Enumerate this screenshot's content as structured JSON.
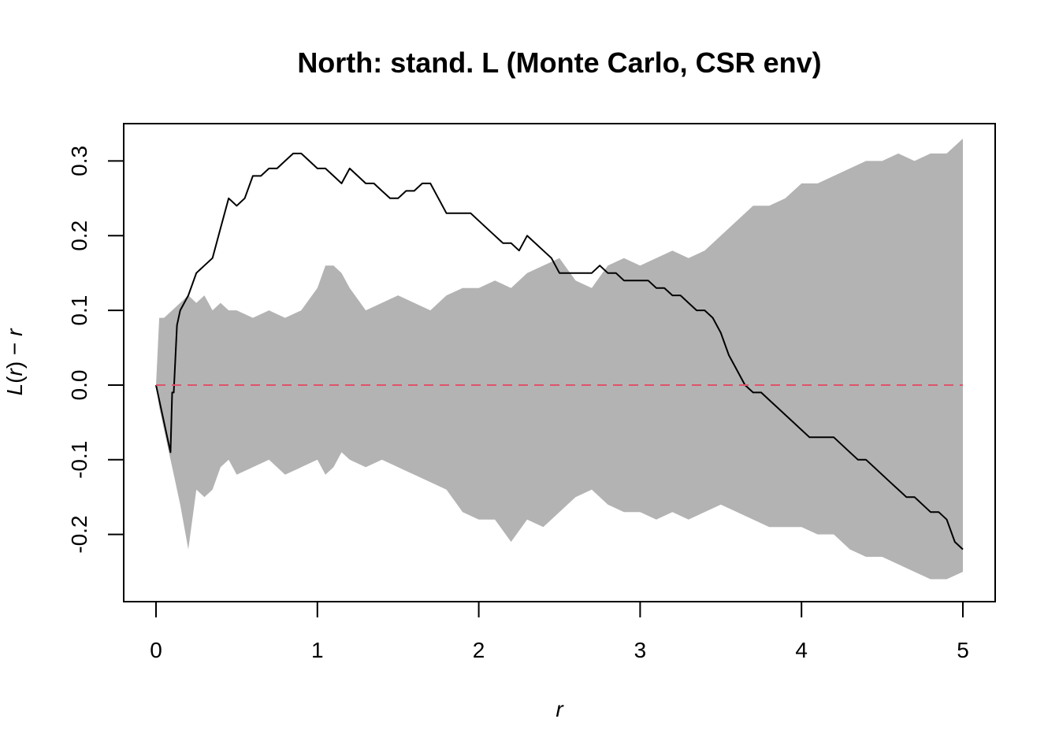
{
  "chart_data": {
    "type": "area",
    "title": "North: stand. L (Monte Carlo, CSR env)",
    "xlabel": "r",
    "ylabel": {
      "left": "L",
      "open": "(",
      "var": "r",
      "close": ")",
      "minus": " − ",
      "right": "r"
    },
    "xlim": [
      0,
      5
    ],
    "ylim": [
      -0.29,
      0.35
    ],
    "xticks": [
      "0",
      "1",
      "2",
      "3",
      "4",
      "5"
    ],
    "yticks": [
      "-0.2",
      "-0.1",
      "0.0",
      "0.1",
      "0.2",
      "0.3"
    ],
    "colors": {
      "envelope": "#b3b3b3",
      "observed": "#000000",
      "theoretical": "#df536b"
    },
    "reference_line": {
      "y": 0,
      "style": "dashed"
    },
    "series": [
      {
        "kind": "envelope",
        "x": [
          0,
          0.02,
          0.05,
          0.1,
          0.15,
          0.2,
          0.25,
          0.3,
          0.35,
          0.4,
          0.45,
          0.5,
          0.6,
          0.7,
          0.8,
          0.9,
          1.0,
          1.05,
          1.1,
          1.15,
          1.2,
          1.3,
          1.4,
          1.5,
          1.6,
          1.7,
          1.8,
          1.9,
          2.0,
          2.1,
          2.2,
          2.3,
          2.4,
          2.5,
          2.6,
          2.7,
          2.8,
          2.9,
          3.0,
          3.1,
          3.2,
          3.3,
          3.4,
          3.5,
          3.6,
          3.7,
          3.8,
          3.9,
          4.0,
          4.1,
          4.2,
          4.3,
          4.4,
          4.5,
          4.6,
          4.7,
          4.8,
          4.9,
          5.0
        ],
        "upper": [
          0,
          0.09,
          0.09,
          0.1,
          0.11,
          0.12,
          0.11,
          0.12,
          0.1,
          0.11,
          0.1,
          0.1,
          0.09,
          0.1,
          0.09,
          0.1,
          0.13,
          0.16,
          0.16,
          0.15,
          0.13,
          0.1,
          0.11,
          0.12,
          0.11,
          0.1,
          0.12,
          0.13,
          0.13,
          0.14,
          0.13,
          0.15,
          0.16,
          0.17,
          0.14,
          0.13,
          0.16,
          0.17,
          0.16,
          0.17,
          0.18,
          0.17,
          0.18,
          0.2,
          0.22,
          0.24,
          0.24,
          0.25,
          0.27,
          0.27,
          0.28,
          0.29,
          0.3,
          0.3,
          0.31,
          0.3,
          0.31,
          0.31,
          0.33
        ],
        "lower": [
          0,
          -0.03,
          -0.06,
          -0.11,
          -0.16,
          -0.22,
          -0.14,
          -0.15,
          -0.14,
          -0.11,
          -0.1,
          -0.12,
          -0.11,
          -0.1,
          -0.12,
          -0.11,
          -0.1,
          -0.12,
          -0.11,
          -0.09,
          -0.1,
          -0.11,
          -0.1,
          -0.11,
          -0.12,
          -0.13,
          -0.14,
          -0.17,
          -0.18,
          -0.18,
          -0.21,
          -0.18,
          -0.19,
          -0.17,
          -0.15,
          -0.14,
          -0.16,
          -0.17,
          -0.17,
          -0.18,
          -0.17,
          -0.18,
          -0.17,
          -0.16,
          -0.17,
          -0.18,
          -0.19,
          -0.19,
          -0.19,
          -0.2,
          -0.2,
          -0.22,
          -0.23,
          -0.23,
          -0.24,
          -0.25,
          -0.26,
          -0.26,
          -0.25
        ]
      },
      {
        "kind": "observed",
        "x": [
          0,
          0.09,
          0.1,
          0.11,
          0.13,
          0.15,
          0.2,
          0.25,
          0.3,
          0.35,
          0.4,
          0.45,
          0.5,
          0.55,
          0.6,
          0.65,
          0.7,
          0.75,
          0.8,
          0.85,
          0.9,
          0.95,
          1.0,
          1.05,
          1.1,
          1.15,
          1.2,
          1.25,
          1.3,
          1.35,
          1.4,
          1.45,
          1.5,
          1.55,
          1.6,
          1.65,
          1.7,
          1.75,
          1.8,
          1.85,
          1.9,
          1.95,
          2.0,
          2.05,
          2.1,
          2.15,
          2.2,
          2.25,
          2.3,
          2.35,
          2.4,
          2.45,
          2.5,
          2.55,
          2.6,
          2.65,
          2.7,
          2.75,
          2.8,
          2.85,
          2.9,
          2.95,
          3.0,
          3.05,
          3.1,
          3.15,
          3.2,
          3.25,
          3.3,
          3.35,
          3.4,
          3.45,
          3.5,
          3.55,
          3.6,
          3.65,
          3.7,
          3.75,
          3.8,
          3.85,
          3.9,
          3.95,
          4.0,
          4.05,
          4.1,
          4.15,
          4.2,
          4.25,
          4.3,
          4.35,
          4.4,
          4.45,
          4.5,
          4.55,
          4.6,
          4.65,
          4.7,
          4.75,
          4.8,
          4.85,
          4.9,
          4.95,
          5.0
        ],
        "y": [
          0,
          -0.09,
          -0.01,
          -0.01,
          0.08,
          0.1,
          0.12,
          0.15,
          0.16,
          0.17,
          0.21,
          0.25,
          0.24,
          0.25,
          0.28,
          0.28,
          0.29,
          0.29,
          0.3,
          0.31,
          0.31,
          0.3,
          0.29,
          0.29,
          0.28,
          0.27,
          0.29,
          0.28,
          0.27,
          0.27,
          0.26,
          0.25,
          0.25,
          0.26,
          0.26,
          0.27,
          0.27,
          0.25,
          0.23,
          0.23,
          0.23,
          0.23,
          0.22,
          0.21,
          0.2,
          0.19,
          0.19,
          0.18,
          0.2,
          0.19,
          0.18,
          0.17,
          0.15,
          0.15,
          0.15,
          0.15,
          0.15,
          0.16,
          0.15,
          0.15,
          0.14,
          0.14,
          0.14,
          0.14,
          0.13,
          0.13,
          0.12,
          0.12,
          0.11,
          0.1,
          0.1,
          0.09,
          0.07,
          0.04,
          0.02,
          0.0,
          -0.01,
          -0.01,
          -0.02,
          -0.03,
          -0.04,
          -0.05,
          -0.06,
          -0.07,
          -0.07,
          -0.07,
          -0.07,
          -0.08,
          -0.09,
          -0.1,
          -0.1,
          -0.11,
          -0.12,
          -0.13,
          -0.14,
          -0.15,
          -0.15,
          -0.16,
          -0.17,
          -0.17,
          -0.18,
          -0.21,
          -0.22
        ]
      }
    ]
  }
}
